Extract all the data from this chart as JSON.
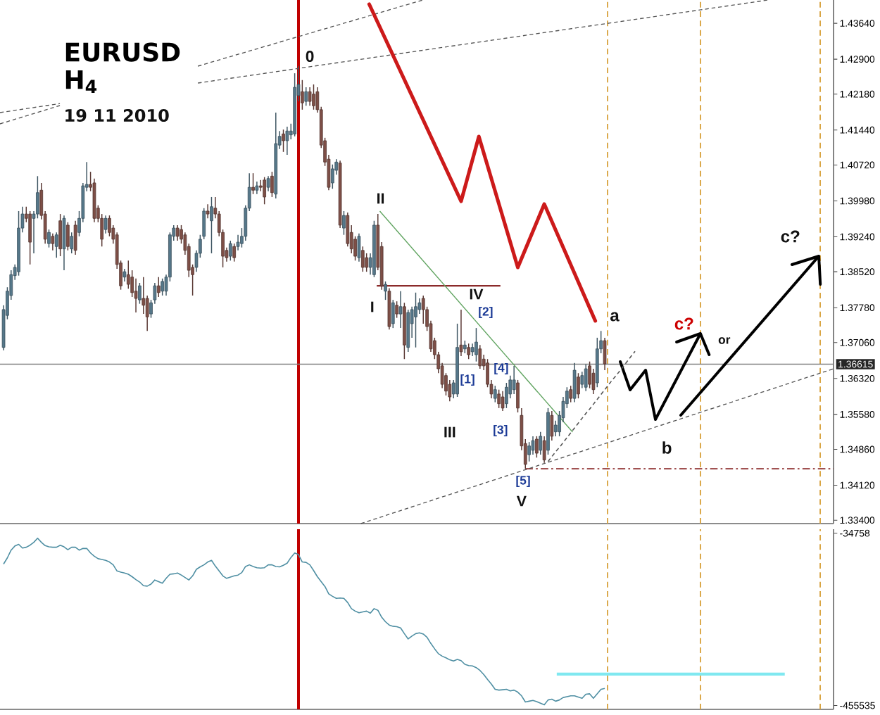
{
  "chart_data": [
    {
      "type": "candlestick",
      "title": "EURUSD",
      "subtitle": "H$_{4}$",
      "annotations": [
        "19 11 2010",
        "0",
        "I",
        "II",
        "III",
        "IV",
        "V",
        "[1]",
        "[2]",
        "[3]",
        "[4]",
        "[5]",
        "a",
        "b",
        "c?",
        "or",
        "c?"
      ],
      "categories": [
        null,
        null,
        null,
        null,
        null,
        null,
        null,
        null,
        null,
        null,
        null,
        null,
        null,
        null,
        null,
        null,
        null,
        null,
        null,
        null,
        null,
        null,
        null,
        null,
        null,
        null,
        null,
        null,
        null,
        null,
        null,
        null,
        null,
        null,
        null,
        null,
        null,
        null,
        null,
        null,
        null,
        null,
        null,
        null,
        null,
        null,
        null,
        null,
        null,
        null,
        null,
        null,
        null,
        null,
        null,
        null,
        null,
        null,
        null,
        null,
        null,
        null,
        null,
        null,
        null,
        null,
        null,
        null,
        null,
        null,
        null,
        null,
        null,
        null,
        null,
        null,
        null,
        null,
        null,
        null,
        null,
        null,
        null,
        null,
        null,
        null,
        null,
        null,
        null,
        null,
        null,
        null,
        null,
        null,
        null,
        null,
        null,
        null,
        null,
        null,
        null,
        null,
        null,
        null,
        null,
        null,
        null,
        null,
        null,
        null,
        null,
        null,
        null,
        null,
        null,
        null,
        null,
        null,
        null,
        null,
        null,
        null,
        null,
        null,
        null,
        null,
        null,
        null,
        null,
        null,
        null,
        null,
        null,
        null,
        null,
        null,
        null,
        null,
        null,
        null,
        null,
        null,
        null,
        null,
        null,
        null,
        null,
        null,
        null,
        null,
        null,
        null,
        null,
        null,
        null,
        null,
        null,
        null,
        null,
        null,
        null,
        null,
        null,
        null,
        null,
        null,
        null,
        null,
        null,
        null,
        null,
        null,
        null,
        null,
        null,
        null,
        null,
        null,
        null,
        null,
        null,
        null,
        null,
        null,
        null,
        null,
        null,
        null,
        null,
        null,
        null,
        null,
        null,
        null,
        null,
        null,
        null,
        null,
        null,
        null,
        null,
        null,
        null,
        null,
        null,
        null,
        null,
        null,
        null,
        null,
        null,
        null,
        null,
        null,
        null,
        null,
        null,
        null,
        null,
        null
      ],
      "ohlc": [
        [
          1.3696,
          1.3783,
          1.369,
          1.3774
        ],
        [
          1.3762,
          1.382,
          1.3754,
          1.3812
        ],
        [
          1.3803,
          1.3855,
          1.3794,
          1.3846
        ],
        [
          1.3844,
          1.3867,
          1.3835,
          1.3861
        ],
        [
          1.3852,
          1.3977,
          1.3844,
          1.3942
        ],
        [
          1.3942,
          1.3986,
          1.3933,
          1.3971
        ],
        [
          1.3971,
          1.3986,
          1.3954,
          1.3962
        ],
        [
          1.3971,
          1.3977,
          1.3867,
          1.3913
        ],
        [
          1.3962,
          1.3977,
          1.389,
          1.3971
        ],
        [
          1.3971,
          1.4049,
          1.3962,
          1.4015
        ],
        [
          1.402,
          1.4035,
          1.396,
          1.3968
        ],
        [
          1.3971,
          1.3977,
          1.391,
          1.3919
        ],
        [
          1.391,
          1.3939,
          1.3902,
          1.3933
        ],
        [
          1.3925,
          1.3931,
          1.3896,
          1.391
        ],
        [
          1.3904,
          1.3933,
          1.3881,
          1.3928
        ],
        [
          1.3957,
          1.3971,
          1.3884,
          1.3899
        ],
        [
          1.3899,
          1.3968,
          1.3855,
          1.3962
        ],
        [
          1.3948,
          1.3954,
          1.3896,
          1.3904
        ],
        [
          1.3899,
          1.3933,
          1.389,
          1.3925
        ],
        [
          1.3948,
          1.3957,
          1.3887,
          1.3896
        ],
        [
          1.3933,
          1.3977,
          1.3925,
          1.3962
        ],
        [
          1.3962,
          1.4035,
          1.3954,
          1.4029
        ],
        [
          1.4026,
          1.4078,
          1.4018,
          1.4032
        ],
        [
          1.4032,
          1.4058,
          1.4018,
          1.4026
        ],
        [
          1.4035,
          1.4044,
          1.3954,
          1.3962
        ],
        [
          1.3983,
          1.3989,
          1.3954,
          1.3962
        ],
        [
          1.3962,
          1.3971,
          1.3904,
          1.3919
        ],
        [
          1.3939,
          1.3968,
          1.3931,
          1.3962
        ],
        [
          1.3962,
          1.3968,
          1.3925,
          1.3933
        ],
        [
          1.3942,
          1.3948,
          1.391,
          1.3919
        ],
        [
          1.3928,
          1.3933,
          1.3858,
          1.3867
        ],
        [
          1.387,
          1.3875,
          1.3815,
          1.3823
        ],
        [
          1.3841,
          1.3858,
          1.3832,
          1.3852
        ],
        [
          1.3846,
          1.3875,
          1.3817,
          1.3826
        ],
        [
          1.3841,
          1.3855,
          1.38,
          1.3809
        ],
        [
          1.3812,
          1.3838,
          1.3768,
          1.3797
        ],
        [
          1.3794,
          1.3829,
          1.3786,
          1.3823
        ],
        [
          1.3797,
          1.3841,
          1.3765,
          1.3783
        ],
        [
          1.3797,
          1.3803,
          1.373,
          1.3759
        ],
        [
          1.3765,
          1.3794,
          1.3757,
          1.3788
        ],
        [
          1.3794,
          1.3829,
          1.3786,
          1.3823
        ],
        [
          1.3823,
          1.3841,
          1.38,
          1.3809
        ],
        [
          1.3812,
          1.3838,
          1.3803,
          1.3832
        ],
        [
          1.3812,
          1.3846,
          1.3803,
          1.3841
        ],
        [
          1.3841,
          1.3933,
          1.3832,
          1.3928
        ],
        [
          1.3925,
          1.3948,
          1.3916,
          1.3942
        ],
        [
          1.3942,
          1.3948,
          1.3916,
          1.3925
        ],
        [
          1.3939,
          1.3948,
          1.391,
          1.3919
        ],
        [
          1.3928,
          1.3933,
          1.3887,
          1.3896
        ],
        [
          1.3904,
          1.391,
          1.3841,
          1.3855
        ],
        [
          1.3861,
          1.3867,
          1.3803,
          1.3846
        ],
        [
          1.3861,
          1.3896,
          1.3852,
          1.389
        ],
        [
          1.389,
          1.3928,
          1.3881,
          1.3919
        ],
        [
          1.3925,
          1.3983,
          1.3919,
          1.3977
        ],
        [
          1.3977,
          1.3991,
          1.3962,
          1.3971
        ],
        [
          1.3957,
          1.4006,
          1.389,
          1.3986
        ],
        [
          1.3983,
          1.4006,
          1.3962,
          1.3971
        ],
        [
          1.3971,
          1.3977,
          1.3925,
          1.3933
        ],
        [
          1.3933,
          1.3939,
          1.3861,
          1.3884
        ],
        [
          1.3896,
          1.3902,
          1.3873,
          1.3881
        ],
        [
          1.3884,
          1.3916,
          1.3875,
          1.391
        ],
        [
          1.3904,
          1.391,
          1.3873,
          1.3881
        ],
        [
          1.3904,
          1.3928,
          1.3896,
          1.3913
        ],
        [
          1.391,
          1.3942,
          1.3902,
          1.3925
        ],
        [
          1.3925,
          1.3989,
          1.3916,
          1.3983
        ],
        [
          1.3983,
          1.4055,
          1.3977,
          1.4026
        ],
        [
          1.4026,
          1.4055,
          1.4012,
          1.402
        ],
        [
          1.402,
          1.4038,
          1.4012,
          1.4029
        ],
        [
          1.4029,
          1.4041,
          1.4018,
          1.4026
        ],
        [
          1.4041,
          1.4047,
          1.3991,
          1.4006
        ],
        [
          1.4026,
          1.4049,
          1.4018,
          1.4044
        ],
        [
          1.4049,
          1.4058,
          1.4006,
          1.4015
        ],
        [
          1.4012,
          1.418,
          1.4003,
          1.4116
        ],
        [
          1.4113,
          1.4142,
          1.4105,
          1.4131
        ],
        [
          1.4136,
          1.4145,
          1.4099,
          1.4122
        ],
        [
          1.4122,
          1.4151,
          1.4093,
          1.4142
        ],
        [
          1.4134,
          1.4157,
          1.4125,
          1.4142
        ],
        [
          1.4136,
          1.4261,
          1.4131,
          1.4232
        ],
        [
          1.4215,
          1.4276,
          1.4203,
          1.4238
        ],
        [
          1.4223,
          1.4247,
          1.4186,
          1.42
        ],
        [
          1.4203,
          1.4232,
          1.4194,
          1.4223
        ],
        [
          1.4223,
          1.4232,
          1.4194,
          1.4203
        ],
        [
          1.4218,
          1.4238,
          1.4186,
          1.4194
        ],
        [
          1.4223,
          1.4232,
          1.418,
          1.4186
        ],
        [
          1.4186,
          1.4192,
          1.4107,
          1.4113
        ],
        [
          1.4122,
          1.4128,
          1.407,
          1.4078
        ],
        [
          1.4084,
          1.4093,
          1.402,
          1.4026
        ],
        [
          1.4035,
          1.4073,
          1.4023,
          1.4064
        ],
        [
          1.4061,
          1.4084,
          1.4052,
          1.4078
        ],
        [
          1.4076,
          1.4081,
          1.3942,
          1.3948
        ],
        [
          1.3942,
          1.3977,
          1.3928,
          1.3968
        ],
        [
          1.3968,
          1.3974,
          1.3904,
          1.391
        ],
        [
          1.3933,
          1.3948,
          1.389,
          1.3899
        ],
        [
          1.3919,
          1.3925,
          1.3875,
          1.3884
        ],
        [
          1.3881,
          1.3931,
          1.3873,
          1.3925
        ],
        [
          1.3896,
          1.3904,
          1.3852,
          1.3861
        ],
        [
          1.3881,
          1.389,
          1.3852,
          1.3861
        ],
        [
          1.3861,
          1.389,
          1.3846,
          1.3881
        ],
        [
          1.3846,
          1.3957,
          1.3841,
          1.3948
        ],
        [
          1.3948,
          1.3971,
          1.3855,
          1.3861
        ],
        [
          1.3904,
          1.3913,
          1.3815,
          1.3823
        ],
        [
          1.3812,
          1.3832,
          1.3794,
          1.3826
        ],
        [
          1.3812,
          1.3818,
          1.3733,
          1.3739
        ],
        [
          1.3745,
          1.3794,
          1.3736,
          1.3788
        ],
        [
          1.3783,
          1.3791,
          1.3757,
          1.3765
        ],
        [
          1.3765,
          1.3812,
          1.3736,
          1.378
        ],
        [
          1.378,
          1.3788,
          1.3672,
          1.3701
        ],
        [
          1.3696,
          1.3774,
          1.3687,
          1.3768
        ],
        [
          1.3745,
          1.378,
          1.3716,
          1.3774
        ],
        [
          1.3759,
          1.3809,
          1.3696,
          1.378
        ],
        [
          1.3774,
          1.3797,
          1.3765,
          1.3788
        ],
        [
          1.3797,
          1.3803,
          1.3745,
          1.3774
        ],
        [
          1.3774,
          1.378,
          1.373,
          1.3739
        ],
        [
          1.3745,
          1.3751,
          1.3687,
          1.3693
        ],
        [
          1.371,
          1.3716,
          1.3672,
          1.3681
        ],
        [
          1.3681,
          1.3687,
          1.3643,
          1.3652
        ],
        [
          1.3658,
          1.3664,
          1.3612,
          1.362
        ],
        [
          1.3638,
          1.3643,
          1.3597,
          1.3606
        ],
        [
          1.362,
          1.3629,
          1.3585,
          1.3594
        ],
        [
          1.36,
          1.3629,
          1.3591,
          1.3623
        ],
        [
          1.36,
          1.3745,
          1.3594,
          1.3696
        ],
        [
          1.3701,
          1.3774,
          1.3678,
          1.3687
        ],
        [
          1.3693,
          1.371,
          1.3684,
          1.3701
        ],
        [
          1.3696,
          1.3704,
          1.3672,
          1.3681
        ],
        [
          1.3687,
          1.3704,
          1.3678,
          1.3696
        ],
        [
          1.3681,
          1.3736,
          1.3667,
          1.3707
        ],
        [
          1.3693,
          1.3701,
          1.3652,
          1.3658
        ],
        [
          1.3672,
          1.3681,
          1.3649,
          1.3658
        ],
        [
          1.3664,
          1.3672,
          1.3614,
          1.362
        ],
        [
          1.362,
          1.3629,
          1.3591,
          1.36
        ],
        [
          1.3591,
          1.3617,
          1.3583,
          1.3609
        ],
        [
          1.36,
          1.3609,
          1.3571,
          1.358
        ],
        [
          1.3594,
          1.3606,
          1.3565,
          1.3571
        ],
        [
          1.358,
          1.3623,
          1.3571,
          1.3614
        ],
        [
          1.36,
          1.3638,
          1.3591,
          1.3629
        ],
        [
          1.3609,
          1.3658,
          1.36,
          1.3629
        ],
        [
          1.3623,
          1.3629,
          1.3562,
          1.3571
        ],
        [
          1.3556,
          1.3571,
          1.3484,
          1.3493
        ],
        [
          1.3498,
          1.3507,
          1.3446,
          1.3455
        ],
        [
          1.3475,
          1.3501,
          1.3461,
          1.3493
        ],
        [
          1.3484,
          1.3513,
          1.3475,
          1.3504
        ],
        [
          1.3507,
          1.3513,
          1.3469,
          1.3478
        ],
        [
          1.3484,
          1.3522,
          1.3475,
          1.3513
        ],
        [
          1.3504,
          1.3513,
          1.3458,
          1.3464
        ],
        [
          1.3484,
          1.3571,
          1.3475,
          1.3562
        ],
        [
          1.3556,
          1.3565,
          1.3504,
          1.3513
        ],
        [
          1.3522,
          1.3545,
          1.3513,
          1.3536
        ],
        [
          1.3522,
          1.3565,
          1.3513,
          1.3556
        ],
        [
          1.3551,
          1.3594,
          1.3542,
          1.3585
        ],
        [
          1.358,
          1.3614,
          1.3571,
          1.3606
        ],
        [
          1.3609,
          1.3617,
          1.3583,
          1.3591
        ],
        [
          1.3591,
          1.3664,
          1.3583,
          1.3649
        ],
        [
          1.3635,
          1.3643,
          1.3591,
          1.36
        ],
        [
          1.362,
          1.3646,
          1.3612,
          1.3638
        ],
        [
          1.3614,
          1.3661,
          1.3606,
          1.3652
        ],
        [
          1.3658,
          1.3667,
          1.3612,
          1.362
        ],
        [
          1.3643,
          1.3652,
          1.36,
          1.3609
        ],
        [
          1.3623,
          1.3716,
          1.3614,
          1.3693
        ],
        [
          1.3693,
          1.373,
          1.3684,
          1.371
        ],
        [
          1.371,
          1.3716,
          1.3649,
          1.3662
        ],
        null,
        null,
        null,
        null,
        null,
        null,
        null,
        null,
        null,
        null,
        null,
        null,
        null,
        null,
        null,
        null,
        null,
        null,
        null,
        null,
        null,
        null,
        null,
        null,
        null,
        null,
        null,
        null,
        null,
        null,
        null,
        null,
        null,
        null,
        null,
        null,
        null,
        null,
        null,
        null,
        null,
        null,
        null,
        null,
        null,
        null,
        null,
        null,
        null,
        null,
        null,
        null,
        null,
        null,
        null,
        null,
        null,
        null,
        null,
        null
      ],
      "colors": [
        "#56788a",
        "#56788a",
        "#56788a",
        "#56788a",
        "#56788a",
        "#56788a",
        "#7e4f47",
        "#7e4f47",
        "#56788a",
        "#56788a",
        "#7e4f47",
        "#7e4f47",
        "#56788a",
        "#7e4f47",
        "#56788a",
        "#7e4f47",
        "#56788a",
        "#7e4f47",
        "#56788a",
        "#7e4f47",
        "#56788a",
        "#56788a",
        "#56788a",
        "#7e4f47",
        "#7e4f47",
        "#7e4f47",
        "#7e4f47",
        "#56788a",
        "#7e4f47",
        "#7e4f47",
        "#7e4f47",
        "#7e4f47",
        "#56788a",
        "#7e4f47",
        "#7e4f47",
        "#7e4f47",
        "#56788a",
        "#7e4f47",
        "#7e4f47",
        "#56788a",
        "#56788a",
        "#7e4f47",
        "#56788a",
        "#56788a",
        "#56788a",
        "#56788a",
        "#7e4f47",
        "#7e4f47",
        "#7e4f47",
        "#7e4f47",
        "#7e4f47",
        "#56788a",
        "#56788a",
        "#56788a",
        "#7e4f47",
        "#56788a",
        "#7e4f47",
        "#7e4f47",
        "#7e4f47",
        "#7e4f47",
        "#56788a",
        "#7e4f47",
        "#56788a",
        "#56788a",
        "#56788a",
        "#56788a",
        "#7e4f47",
        "#56788a",
        "#7e4f47",
        "#7e4f47",
        "#56788a",
        "#7e4f47",
        "#56788a",
        "#56788a",
        "#7e4f47",
        "#56788a",
        "#56788a",
        "#56788a",
        "#56788a",
        "#7e4f47",
        "#56788a",
        "#7e4f47",
        "#7e4f47",
        "#7e4f47",
        "#7e4f47",
        "#7e4f47",
        "#7e4f47",
        "#56788a",
        "#56788a",
        "#7e4f47",
        "#56788a",
        "#7e4f47",
        "#7e4f47",
        "#7e4f47",
        "#56788a",
        "#7e4f47",
        "#7e4f47",
        "#56788a",
        "#56788a",
        "#7e4f47",
        "#7e4f47",
        "#56788a",
        "#7e4f47",
        "#56788a",
        "#7e4f47",
        "#56788a",
        "#7e4f47",
        "#56788a",
        "#56788a",
        "#56788a",
        "#56788a",
        "#7e4f47",
        "#7e4f47",
        "#7e4f47",
        "#7e4f47",
        "#7e4f47",
        "#7e4f47",
        "#7e4f47",
        "#7e4f47",
        "#56788a",
        "#56788a",
        "#7e4f47",
        "#56788a",
        "#7e4f47",
        "#56788a",
        "#56788a",
        "#7e4f47",
        "#7e4f47",
        "#7e4f47",
        "#7e4f47",
        "#56788a",
        "#7e4f47",
        "#7e4f47",
        "#56788a",
        "#56788a",
        "#56788a",
        "#7e4f47",
        "#7e4f47",
        "#7e4f47",
        "#56788a",
        "#56788a",
        "#7e4f47",
        "#56788a",
        "#7e4f47",
        "#56788a",
        "#7e4f47",
        "#56788a",
        "#56788a",
        "#56788a",
        "#56788a",
        "#7e4f47",
        "#56788a",
        "#7e4f47",
        "#56788a",
        "#56788a",
        "#7e4f47",
        "#7e4f47",
        "#56788a",
        "#56788a",
        "#7e4f47",
        null,
        null,
        null,
        null,
        null,
        null,
        null,
        null,
        null,
        null,
        null,
        null,
        null,
        null,
        null,
        null,
        null,
        null,
        null,
        null,
        null,
        null,
        null,
        null,
        null,
        null,
        null,
        null,
        null,
        null,
        null,
        null,
        null,
        null,
        null,
        null,
        null,
        null,
        null,
        null,
        null,
        null,
        null,
        null,
        null,
        null,
        null,
        null,
        null,
        null,
        null,
        null,
        null,
        null,
        null,
        null,
        null,
        null,
        null,
        null
      ],
      "series": [
        {
          "type": "line",
          "color": "#555555",
          "line_style": "dashed",
          "values": [
            null,
            null,
            null,
            null,
            null,
            null,
            null,
            null,
            null,
            null,
            null,
            null,
            null,
            null,
            null,
            null,
            null,
            null,
            null,
            null,
            null,
            null,
            null,
            null,
            null,
            null,
            null,
            null,
            null,
            null,
            null,
            null,
            null,
            null,
            null,
            null,
            null,
            null,
            null,
            null,
            null,
            null,
            null,
            null,
            null,
            null,
            null,
            null,
            null,
            null,
            null,
            null,
            null,
            null,
            null,
            null,
            null,
            null,
            null,
            null,
            null,
            null,
            null,
            null,
            null,
            null,
            null,
            null,
            null,
            null,
            null,
            null,
            null,
            null,
            null,
            null,
            null,
            null,
            null,
            null,
            null,
            null,
            null,
            null,
            null,
            null,
            null,
            null,
            null,
            null,
            null,
            null,
            null,
            null,
            null,
            null,
            null,
            null,
            null,
            null,
            null,
            null,
            null,
            null,
            null,
            null,
            null,
            null,
            null,
            null,
            null,
            null,
            null,
            null,
            null,
            null,
            null,
            null,
            null,
            null,
            null,
            null,
            null,
            null,
            null,
            null,
            null,
            null,
            null,
            null,
            null,
            null,
            null,
            null,
            null,
            null,
            null,
            null,
            null,
            null,
            null,
            null,
            null,
            null,
            1.3461,
            1.3471,
            1.3481,
            1.349,
            1.35,
            1.351,
            1.352,
            1.353,
            1.354,
            1.355,
            1.356,
            1.3569,
            1.3579,
            1.3589,
            1.3599,
            1.3609,
            1.3619,
            1.3629,
            1.3638,
            1.3648,
            1.3658,
            1.3668,
            1.3678,
            1.3688,
            null,
            null,
            null,
            null,
            null,
            null,
            null,
            null,
            null,
            null,
            null,
            null,
            null,
            null,
            null,
            null,
            null,
            null,
            null,
            null,
            null,
            null,
            null,
            null,
            null,
            null,
            null,
            null,
            null,
            null,
            null,
            null,
            null,
            null,
            null,
            null,
            null,
            null,
            null,
            null,
            null,
            null,
            null,
            null,
            null,
            null,
            null,
            null,
            null,
            null,
            null,
            null
          ]
        }
      ],
      "ylim": [
        1.3333,
        1.4412
      ],
      "yticks": [
        {
          "value": 1.334,
          "label": "1.33400"
        },
        {
          "value": 1.3412,
          "label": "1.34120"
        },
        {
          "value": 1.3486,
          "label": "1.34860"
        },
        {
          "value": 1.3558,
          "label": "1.35580"
        },
        {
          "value": 1.3632,
          "label": "1.36320"
        },
        {
          "value": 1.3706,
          "label": "1.37060"
        },
        {
          "value": 1.3778,
          "label": "1.37780"
        },
        {
          "value": 1.3852,
          "label": "1.38520"
        },
        {
          "value": 1.3924,
          "label": "1.39240"
        },
        {
          "value": 1.3998,
          "label": "1.39980"
        },
        {
          "value": 1.4072,
          "label": "1.40720"
        },
        {
          "value": 1.4144,
          "label": "1.41440"
        },
        {
          "value": 1.4218,
          "label": "1.42180"
        },
        {
          "value": 1.429,
          "label": "1.42900"
        },
        {
          "value": 1.4364,
          "label": "1.43640"
        }
      ],
      "ref_lines": [
        {
          "axis": "y",
          "value": 1.36615,
          "label": "1.36615",
          "color": "#808080"
        },
        {
          "axis": "y",
          "value": 1.3446,
          "color": "#8b2a2a",
          "line_style": "dashed"
        },
        {
          "axis": "y",
          "value": 1.3823,
          "color": "#8b2a2a"
        }
      ]
    },
    {
      "type": "line",
      "categories": [
        null,
        null,
        null,
        null,
        null,
        null,
        null,
        null,
        null,
        null,
        null,
        null,
        null,
        null,
        null,
        null,
        null,
        null,
        null,
        null,
        null,
        null,
        null,
        null,
        null,
        null,
        null,
        null,
        null,
        null,
        null,
        null,
        null,
        null,
        null,
        null,
        null,
        null,
        null,
        null,
        null,
        null,
        null,
        null,
        null,
        null,
        null,
        null,
        null,
        null,
        null,
        null,
        null,
        null,
        null,
        null,
        null,
        null,
        null,
        null,
        null,
        null,
        null,
        null,
        null,
        null,
        null,
        null,
        null,
        null,
        null,
        null,
        null,
        null,
        null,
        null,
        null,
        null,
        null,
        null,
        null,
        null,
        null,
        null,
        null,
        null,
        null,
        null,
        null,
        null,
        null,
        null,
        null,
        null,
        null,
        null,
        null,
        null,
        null,
        null,
        null,
        null,
        null,
        null,
        null,
        null,
        null,
        null,
        null,
        null,
        null,
        null,
        null,
        null,
        null,
        null,
        null,
        null,
        null,
        null,
        null,
        null,
        null,
        null,
        null,
        null,
        null,
        null,
        null,
        null,
        null,
        null,
        null,
        null,
        null,
        null,
        null,
        null,
        null,
        null,
        null,
        null,
        null,
        null,
        null,
        null,
        null,
        null,
        null,
        null,
        null,
        null,
        null,
        null,
        null,
        null,
        null,
        null,
        null,
        null,
        null,
        null,
        null,
        null,
        null,
        null,
        null,
        null,
        null,
        null,
        null,
        null,
        null,
        null,
        null,
        null,
        null,
        null,
        null,
        null,
        null,
        null,
        null,
        null,
        null,
        null,
        null,
        null,
        null,
        null,
        null,
        null,
        null,
        null,
        null,
        null,
        null,
        null,
        null,
        null,
        null,
        null,
        null,
        null,
        null,
        null,
        null,
        null,
        null,
        null,
        null,
        null,
        null,
        null,
        null,
        null,
        null,
        null,
        null,
        null
      ],
      "series": [
        {
          "color": "#4f8fa3",
          "values": [
            -110000,
            -95000,
            -76000,
            -66000,
            -62000,
            -71000,
            -69000,
            -64000,
            -57000,
            -47000,
            -57000,
            -65000,
            -68000,
            -69000,
            -69000,
            -64000,
            -68000,
            -75000,
            -69000,
            -69000,
            -76000,
            -72000,
            -72000,
            -83000,
            -91000,
            -97000,
            -99000,
            -101000,
            -105000,
            -112000,
            -127000,
            -130000,
            -132000,
            -135000,
            -141000,
            -148000,
            -154000,
            -163000,
            -164000,
            -159000,
            -149000,
            -153000,
            -157000,
            -145000,
            -135000,
            -134000,
            -132000,
            -137000,
            -143000,
            -149000,
            -139000,
            -123000,
            -117000,
            -112000,
            -105000,
            -101000,
            -115000,
            -127000,
            -139000,
            -145000,
            -142000,
            -139000,
            -137000,
            -131000,
            -116000,
            -112000,
            -116000,
            -119000,
            -120000,
            -119000,
            -112000,
            -112000,
            -116000,
            -117000,
            -113000,
            -108000,
            -94000,
            -83000,
            -87000,
            -105000,
            -106000,
            -112000,
            -126000,
            -141000,
            -153000,
            -165000,
            -183000,
            -189000,
            -194000,
            -193000,
            -194000,
            -204000,
            -219000,
            -225000,
            -229000,
            -227000,
            -225000,
            -230000,
            -219000,
            -223000,
            -240000,
            -251000,
            -259000,
            -262000,
            -263000,
            -266000,
            -280000,
            -293000,
            -286000,
            -280000,
            -278000,
            -281000,
            -289000,
            -304000,
            -317000,
            -329000,
            -335000,
            -339000,
            -344000,
            -347000,
            -343000,
            -346000,
            -355000,
            -358000,
            -359000,
            -363000,
            -370000,
            -380000,
            -392000,
            -403000,
            -416000,
            -418000,
            -417000,
            -416000,
            -420000,
            -418000,
            -423000,
            -432000,
            -447000,
            -445000,
            -443000,
            -446000,
            -450000,
            -454000,
            -442000,
            -440000,
            -445000,
            -442000,
            -436000,
            -434000,
            -432000,
            -432000,
            -435000,
            -438000,
            -428000,
            -427000,
            -438000,
            -427000,
            -416000,
            -414000,
            null,
            null,
            null,
            null,
            null,
            null,
            null,
            null,
            null,
            null,
            null,
            null,
            null,
            null,
            null,
            null,
            null,
            null,
            null,
            null,
            null,
            null,
            null,
            null,
            null,
            null,
            null,
            null,
            null,
            null,
            null,
            null,
            null,
            null,
            null,
            null,
            null,
            null,
            null,
            null,
            null,
            null,
            null,
            null,
            null,
            null,
            null,
            null,
            null,
            null,
            null,
            null,
            null,
            null,
            null,
            null,
            null,
            null,
            null,
            null
          ]
        }
      ],
      "ylim": [
        -465000,
        -25000
      ],
      "yticks": [
        -455535,
        -34758
      ],
      "ref_lines": [
        {
          "axis": "y",
          "value": -379000,
          "color": "#80e8f0"
        }
      ]
    }
  ]
}
